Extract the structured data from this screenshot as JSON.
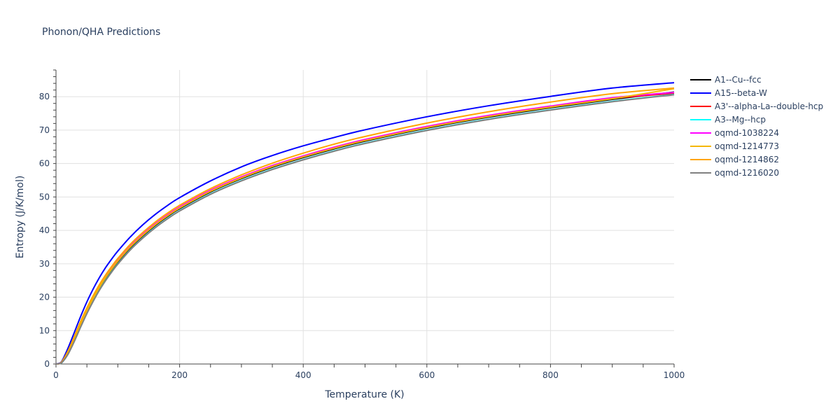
{
  "chart_data": {
    "type": "line",
    "title": "Phonon/QHA Predictions",
    "xlabel": "Temperature (K)",
    "ylabel": "Entropy (J/K/mol)",
    "xlim": [
      0,
      1000
    ],
    "ylim": [
      0,
      88
    ],
    "x_ticks": [
      0,
      200,
      400,
      600,
      800,
      1000
    ],
    "y_ticks": [
      0,
      10,
      20,
      30,
      40,
      50,
      60,
      70,
      80
    ],
    "grid": true,
    "legend_position": "right",
    "x": [
      0,
      5,
      10,
      20,
      30,
      40,
      50,
      60,
      70,
      80,
      90,
      100,
      120,
      140,
      160,
      180,
      200,
      250,
      300,
      350,
      400,
      450,
      500,
      600,
      700,
      800,
      900,
      1000
    ],
    "series": [
      {
        "name": "A1--Cu--fcc",
        "color": "#000000",
        "values": [
          0,
          0.1,
          0.6,
          3.5,
          7.5,
          11.8,
          15.8,
          19.4,
          22.7,
          25.6,
          28.2,
          30.6,
          34.8,
          38.3,
          41.4,
          44.1,
          46.5,
          51.5,
          55.5,
          58.9,
          61.8,
          64.4,
          66.7,
          70.6,
          73.9,
          76.7,
          79.2,
          81.4
        ]
      },
      {
        "name": "A15--beta-W",
        "color": "#0000ff",
        "values": [
          0,
          0.2,
          1.0,
          5.0,
          9.6,
          14.3,
          18.6,
          22.4,
          25.8,
          28.8,
          31.4,
          33.8,
          38.0,
          41.6,
          44.7,
          47.4,
          49.8,
          54.8,
          59.0,
          62.4,
          65.3,
          67.8,
          70.1,
          74.0,
          77.3,
          80.1,
          82.6,
          84.2
        ]
      },
      {
        "name": "A3'--alpha-La--double-hcp",
        "color": "#ff0000",
        "values": [
          0,
          0.1,
          0.7,
          3.7,
          7.8,
          12.1,
          16.1,
          19.7,
          23.0,
          25.9,
          28.5,
          30.9,
          35.1,
          38.6,
          41.7,
          44.4,
          46.8,
          51.8,
          55.8,
          59.2,
          62.1,
          64.7,
          67.0,
          70.9,
          74.2,
          77.0,
          79.5,
          81.0
        ]
      },
      {
        "name": "A3--Mg--hcp",
        "color": "#00ffff",
        "values": [
          0,
          0.1,
          0.5,
          3.2,
          7.0,
          11.2,
          15.2,
          18.8,
          22.1,
          25.0,
          27.6,
          30.0,
          34.2,
          37.7,
          40.8,
          43.5,
          45.9,
          50.9,
          54.9,
          58.3,
          61.2,
          63.8,
          66.1,
          70.0,
          73.3,
          76.1,
          78.6,
          80.7
        ]
      },
      {
        "name": "oqmd-1038224",
        "color": "#ff00ff",
        "values": [
          0,
          0.1,
          0.7,
          3.8,
          8.0,
          12.3,
          16.3,
          19.9,
          23.2,
          26.1,
          28.7,
          31.1,
          35.3,
          38.8,
          41.9,
          44.6,
          47.0,
          52.0,
          56.0,
          59.4,
          62.3,
          64.9,
          67.2,
          71.1,
          74.4,
          77.2,
          79.7,
          81.3
        ]
      },
      {
        "name": "oqmd-1214773",
        "color": "#f5b700",
        "values": [
          0,
          0.1,
          0.6,
          3.6,
          7.7,
          12.0,
          16.0,
          19.6,
          22.9,
          25.8,
          28.4,
          30.8,
          35.0,
          38.5,
          41.6,
          44.3,
          46.7,
          51.7,
          55.7,
          59.1,
          62.0,
          64.6,
          66.9,
          70.8,
          74.1,
          76.9,
          79.4,
          82.4
        ]
      },
      {
        "name": "oqmd-1214862",
        "color": "#ffa500",
        "values": [
          0,
          0.1,
          0.8,
          4.1,
          8.4,
          12.8,
          16.8,
          20.4,
          23.7,
          26.6,
          29.2,
          31.6,
          35.8,
          39.3,
          42.4,
          45.1,
          47.5,
          52.5,
          56.6,
          60.1,
          63.1,
          65.8,
          68.1,
          72.1,
          75.5,
          78.4,
          80.9,
          82.6
        ]
      },
      {
        "name": "oqmd-1216020",
        "color": "#808080",
        "values": [
          0,
          0.1,
          0.5,
          3.1,
          6.9,
          11.1,
          15.1,
          18.7,
          22.0,
          24.9,
          27.5,
          29.9,
          34.1,
          37.6,
          40.7,
          43.4,
          45.8,
          50.8,
          54.8,
          58.2,
          61.1,
          63.7,
          66.0,
          69.9,
          73.2,
          76.0,
          78.5,
          80.6
        ]
      }
    ]
  }
}
